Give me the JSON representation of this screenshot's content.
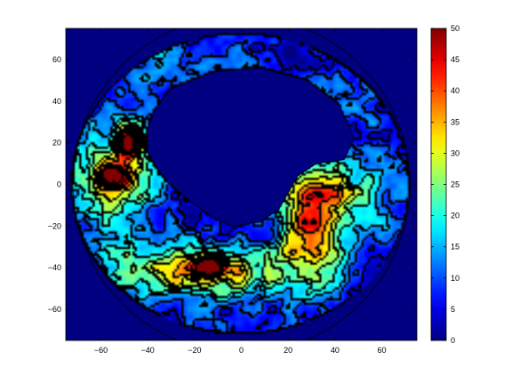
{
  "chart_data": {
    "type": "heatmap",
    "title": "",
    "xlabel": "",
    "ylabel": "",
    "xlim": [
      -75,
      75
    ],
    "ylim": [
      -75,
      75
    ],
    "xticks": [
      -60,
      -40,
      -20,
      0,
      20,
      40,
      60
    ],
    "yticks": [
      -60,
      -40,
      -20,
      0,
      20,
      40,
      60
    ],
    "colorbar": {
      "min": 0,
      "max": 50,
      "ticks": [
        0,
        5,
        10,
        15,
        20,
        25,
        30,
        35,
        40,
        45,
        50
      ]
    },
    "field": {
      "domain_radius": 72,
      "background_value": 0,
      "land_value": 0,
      "land_outline": [
        [
          -37,
          36
        ],
        [
          -30,
          46
        ],
        [
          -12,
          54
        ],
        [
          8,
          56
        ],
        [
          28,
          50
        ],
        [
          42,
          38
        ],
        [
          48,
          22
        ],
        [
          44,
          12
        ],
        [
          32,
          10
        ],
        [
          24,
          4
        ],
        [
          20,
          -4
        ],
        [
          16,
          -12
        ],
        [
          8,
          -18
        ],
        [
          -4,
          -20
        ],
        [
          -12,
          -16
        ],
        [
          -22,
          -8
        ],
        [
          -32,
          2
        ],
        [
          -36,
          8
        ],
        [
          -40,
          16
        ],
        [
          -40,
          26
        ]
      ],
      "features": [
        {
          "x": -15,
          "y": -42,
          "sx": 35,
          "sy": 14,
          "value": 38
        },
        {
          "x": 30,
          "y": -25,
          "sx": 12,
          "sy": 25,
          "value": 37
        },
        {
          "x": -55,
          "y": 0,
          "sx": 18,
          "sy": 30,
          "value": 30
        },
        {
          "x": 40,
          "y": -5,
          "sx": 22,
          "sy": 20,
          "value": 28
        },
        {
          "x": -47,
          "y": 20,
          "sx": 6,
          "sy": 8,
          "value": 45
        },
        {
          "x": -55,
          "y": 5,
          "sx": 8,
          "sy": 7,
          "value": 36
        },
        {
          "x": -13,
          "y": -40,
          "sx": 6,
          "sy": 4,
          "value": 44
        },
        {
          "x": 40,
          "y": 45,
          "sx": 30,
          "sy": 15,
          "value": 10
        },
        {
          "x": -30,
          "y": 55,
          "sx": 25,
          "sy": 14,
          "value": 14
        }
      ]
    }
  },
  "colors": {
    "colormap": "jet",
    "contour_line": "#000000",
    "land": "#00007f"
  }
}
